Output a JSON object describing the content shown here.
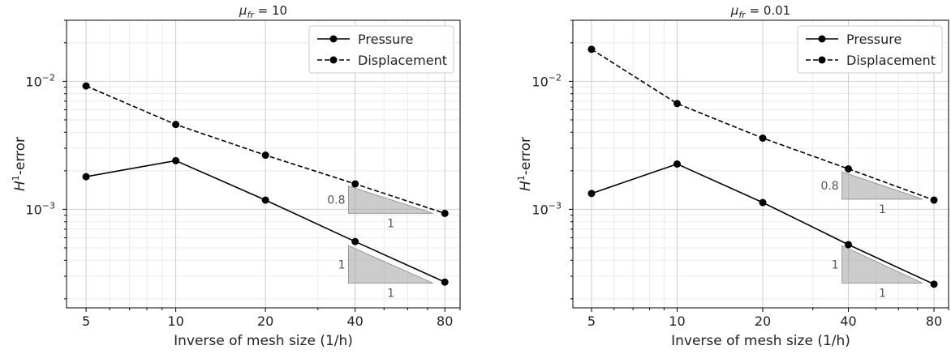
{
  "chart_data": [
    {
      "type": "line",
      "title": "μ_fr = 10",
      "title_main": "μ",
      "title_sub": "fr",
      "title_rest": " = 10",
      "xlabel": "Inverse of mesh size (1/h)",
      "ylabel": "H¹-error",
      "ylabel_main": "H",
      "ylabel_sup": "1",
      "ylabel_rest": "-error",
      "xscale": "log",
      "yscale": "log",
      "grid": true,
      "legend_position": "top-right",
      "x": [
        5,
        10,
        20,
        40,
        80
      ],
      "xticks": [
        "5",
        "10",
        "20",
        "40",
        "80"
      ],
      "yticks": [
        {
          "base": "10",
          "exp": "−2",
          "value": 0.01
        },
        {
          "base": "10",
          "exp": "−3",
          "value": 0.001
        }
      ],
      "ylim": [
        0.00017,
        0.03
      ],
      "series": [
        {
          "name": "Pressure",
          "style": "solid",
          "values": [
            0.0018,
            0.0024,
            0.00118,
            0.00056,
            0.00027
          ]
        },
        {
          "name": "Displacement",
          "style": "dashed",
          "values": [
            0.0092,
            0.0046,
            0.00265,
            0.00158,
            0.00093
          ]
        }
      ],
      "slope_triangles": [
        {
          "slope": 0.8,
          "slope_label": "0.8",
          "run_label": "1",
          "x_start": 38,
          "x_end": 73,
          "y_start": 0.00152,
          "y_end": 0.00093
        },
        {
          "slope": 1,
          "slope_label": "1",
          "run_label": "1",
          "x_start": 38,
          "x_end": 73,
          "y_start": 0.00052,
          "y_end": 0.000265
        }
      ]
    },
    {
      "type": "line",
      "title": "μ_fr = 0.01",
      "title_main": "μ",
      "title_sub": "fr",
      "title_rest": " = 0.01",
      "xlabel": "Inverse of mesh size (1/h)",
      "ylabel": "H¹-error",
      "ylabel_main": "H",
      "ylabel_sup": "1",
      "ylabel_rest": "-error",
      "xscale": "log",
      "yscale": "log",
      "grid": true,
      "legend_position": "top-right",
      "x": [
        5,
        10,
        20,
        40,
        80
      ],
      "xticks": [
        "5",
        "10",
        "20",
        "40",
        "80"
      ],
      "yticks": [
        {
          "base": "10",
          "exp": "−2",
          "value": 0.01
        },
        {
          "base": "10",
          "exp": "−3",
          "value": 0.001
        }
      ],
      "ylim": [
        0.00017,
        0.03
      ],
      "series": [
        {
          "name": "Pressure",
          "style": "solid",
          "values": [
            0.00133,
            0.00226,
            0.00113,
            0.00053,
            0.00026
          ]
        },
        {
          "name": "Displacement",
          "style": "dashed",
          "values": [
            0.0178,
            0.0067,
            0.0036,
            0.00207,
            0.00118
          ]
        }
      ],
      "slope_triangles": [
        {
          "slope": 0.8,
          "slope_label": "0.8",
          "run_label": "1",
          "x_start": 38,
          "x_end": 73,
          "y_start": 0.00196,
          "y_end": 0.0012
        },
        {
          "slope": 1,
          "slope_label": "1",
          "run_label": "1",
          "x_start": 38,
          "x_end": 73,
          "y_start": 0.00052,
          "y_end": 0.000265
        }
      ]
    }
  ]
}
